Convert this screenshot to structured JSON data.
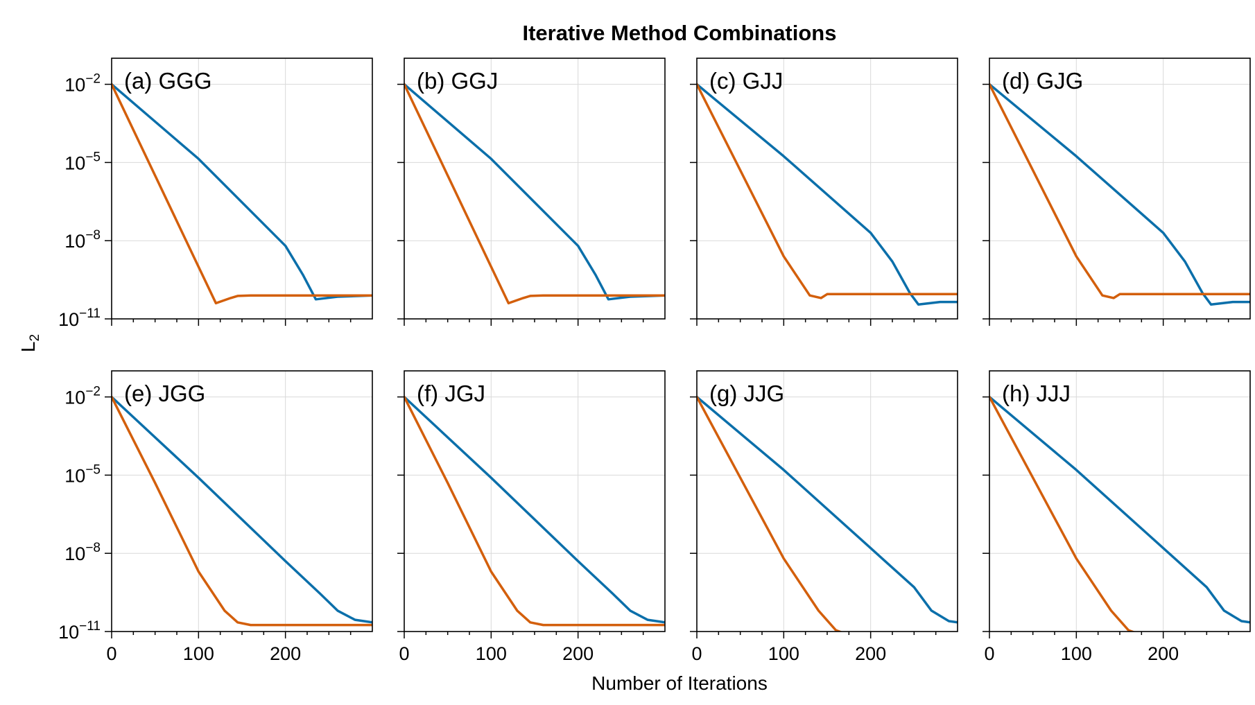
{
  "figure": {
    "title": "Iterative Method Combinations",
    "xlabel": "Number of Iterations",
    "ylabel_main": "L",
    "ylabel_sub": "2"
  },
  "colors": {
    "series_1": "#0b6faa",
    "series_2": "#d35f0c",
    "grid": "#d9d9d9",
    "frame": "#000000"
  },
  "chart_data": {
    "type": "line",
    "layout": "2x4 small multiples, shared axes",
    "xlim": [
      0,
      300
    ],
    "ylim_log10": [
      -11,
      -1
    ],
    "y_scale": "log",
    "grid": true,
    "xticks": [
      0,
      100,
      200
    ],
    "xtick_labels": [
      "0",
      "100",
      "200"
    ],
    "yticks_log10": [
      -2,
      -5,
      -8,
      -11
    ],
    "ytick_labels": [
      {
        "base": "10",
        "exp": "−2"
      },
      {
        "base": "10",
        "exp": "−5"
      },
      {
        "base": "10",
        "exp": "−8"
      },
      {
        "base": "10",
        "exp": "−11"
      }
    ],
    "panels": [
      {
        "label": "(a) GGG",
        "series": [
          {
            "x": [
              0,
              100,
              200,
              220,
              235,
              260,
              300
            ],
            "log10_y": [
              -2,
              -4.86,
              -8.2,
              -9.3,
              -10.25,
              -10.15,
              -10.1
            ]
          },
          {
            "x": [
              0,
              50,
              100,
              120,
              137,
              145,
              160,
              300
            ],
            "log10_y": [
              -2,
              -5.5,
              -9.0,
              -10.4,
              -10.2,
              -10.12,
              -10.1,
              -10.1
            ]
          }
        ]
      },
      {
        "label": "(b) GGJ",
        "series": [
          {
            "x": [
              0,
              100,
              200,
              220,
              235,
              260,
              300
            ],
            "log10_y": [
              -2,
              -4.86,
              -8.2,
              -9.3,
              -10.25,
              -10.15,
              -10.1
            ]
          },
          {
            "x": [
              0,
              50,
              100,
              120,
              137,
              145,
              160,
              300
            ],
            "log10_y": [
              -2,
              -5.5,
              -9.0,
              -10.4,
              -10.2,
              -10.12,
              -10.1,
              -10.1
            ]
          }
        ]
      },
      {
        "label": "(c) GJJ",
        "series": [
          {
            "x": [
              0,
              100,
              200,
              225,
              245,
              255,
              280,
              300
            ],
            "log10_y": [
              -2,
              -4.76,
              -7.7,
              -8.8,
              -10.0,
              -10.45,
              -10.35,
              -10.35
            ]
          },
          {
            "x": [
              0,
              50,
              100,
              130,
              143,
              150,
              165,
              300
            ],
            "log10_y": [
              -2,
              -5.3,
              -8.6,
              -10.1,
              -10.2,
              -10.05,
              -10.05,
              -10.05
            ]
          }
        ]
      },
      {
        "label": "(d) GJG",
        "series": [
          {
            "x": [
              0,
              100,
              200,
              225,
              245,
              255,
              280,
              300
            ],
            "log10_y": [
              -2,
              -4.76,
              -7.7,
              -8.8,
              -10.0,
              -10.45,
              -10.35,
              -10.35
            ]
          },
          {
            "x": [
              0,
              50,
              100,
              130,
              143,
              150,
              165,
              300
            ],
            "log10_y": [
              -2,
              -5.3,
              -8.6,
              -10.1,
              -10.2,
              -10.05,
              -10.05,
              -10.05
            ]
          }
        ]
      },
      {
        "label": "(e) JGG",
        "series": [
          {
            "x": [
              0,
              100,
              200,
              240,
              260,
              280,
              300
            ],
            "log10_y": [
              -2,
              -5.1,
              -8.3,
              -9.55,
              -10.2,
              -10.55,
              -10.65
            ]
          },
          {
            "x": [
              0,
              50,
              100,
              130,
              145,
              160,
              180,
              300
            ],
            "log10_y": [
              -2,
              -5.3,
              -8.7,
              -10.2,
              -10.65,
              -10.75,
              -10.75,
              -10.75
            ]
          }
        ]
      },
      {
        "label": "(f) JGJ",
        "series": [
          {
            "x": [
              0,
              100,
              200,
              240,
              260,
              280,
              300
            ],
            "log10_y": [
              -2,
              -5.1,
              -8.3,
              -9.55,
              -10.2,
              -10.55,
              -10.65
            ]
          },
          {
            "x": [
              0,
              50,
              100,
              130,
              145,
              160,
              180,
              300
            ],
            "log10_y": [
              -2,
              -5.3,
              -8.7,
              -10.2,
              -10.65,
              -10.75,
              -10.75,
              -10.75
            ]
          }
        ]
      },
      {
        "label": "(g) JJG",
        "series": [
          {
            "x": [
              0,
              100,
              200,
              250,
              270,
              290,
              300
            ],
            "log10_y": [
              -2,
              -4.8,
              -7.8,
              -9.3,
              -10.2,
              -10.6,
              -10.65
            ]
          },
          {
            "x": [
              0,
              50,
              100,
              140,
              160,
              180,
              200,
              300
            ],
            "log10_y": [
              -2,
              -5.1,
              -8.2,
              -10.2,
              -10.95,
              -11.2,
              -11.25,
              -11.25
            ]
          }
        ]
      },
      {
        "label": "(h) JJJ",
        "series": [
          {
            "x": [
              0,
              100,
              200,
              250,
              270,
              290,
              300
            ],
            "log10_y": [
              -2,
              -4.8,
              -7.8,
              -9.3,
              -10.2,
              -10.6,
              -10.65
            ]
          },
          {
            "x": [
              0,
              50,
              100,
              140,
              160,
              180,
              200,
              300
            ],
            "log10_y": [
              -2,
              -5.1,
              -8.2,
              -10.2,
              -10.95,
              -11.2,
              -11.25,
              -11.25
            ]
          }
        ]
      }
    ]
  }
}
